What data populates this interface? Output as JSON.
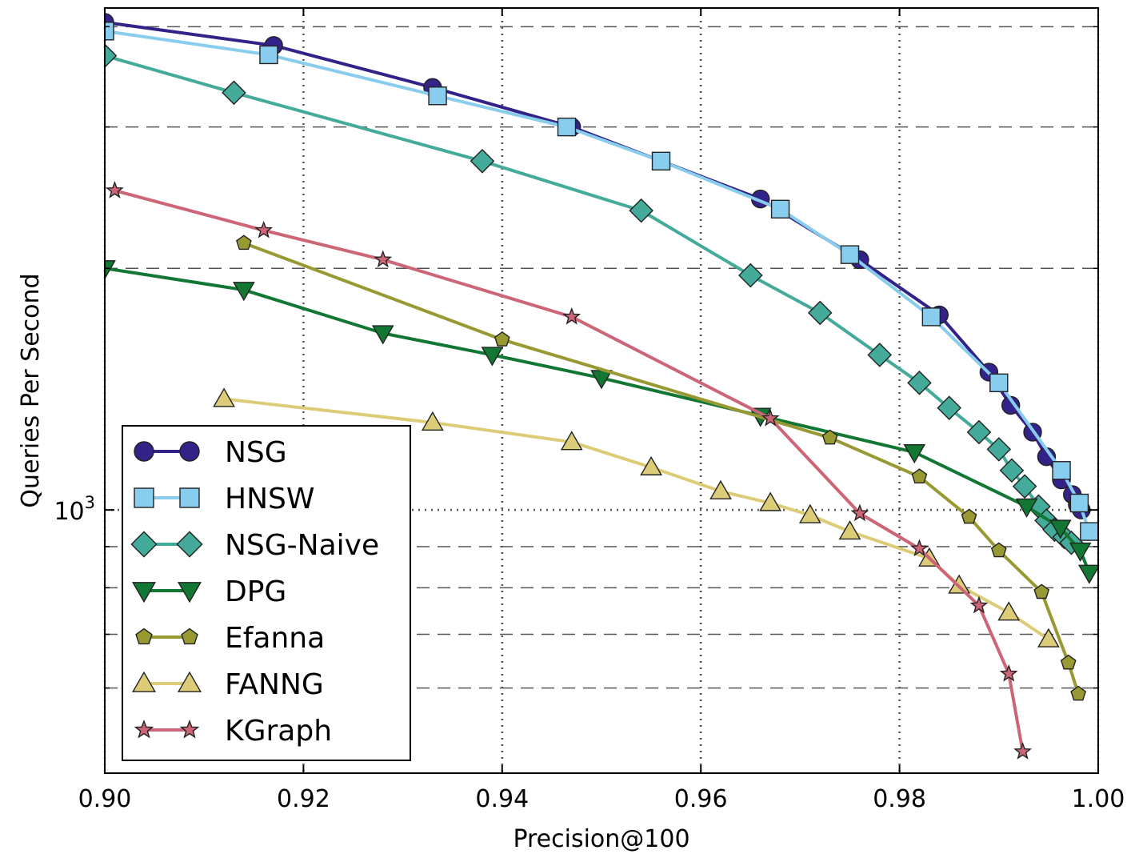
{
  "chart_data": {
    "type": "line",
    "xlabel": "Precision@100",
    "ylabel": "Queries Per Second",
    "xscale": "linear",
    "yscale": "log",
    "xlim": [
      0.9,
      1.0
    ],
    "ylim": [
      470,
      4220
    ],
    "x_ticks": [
      {
        "value": 0.9,
        "label": "0.90"
      },
      {
        "value": 0.92,
        "label": "0.92"
      },
      {
        "value": 0.94,
        "label": "0.94"
      },
      {
        "value": 0.96,
        "label": "0.96"
      },
      {
        "value": 0.98,
        "label": "0.98"
      },
      {
        "value": 1.0,
        "label": "1.00"
      }
    ],
    "y_major_tick": {
      "value": 1000,
      "base": "10",
      "exponent": "3"
    },
    "y_minor_ticks": [
      600,
      700,
      800,
      900,
      2000,
      3000,
      4000
    ],
    "grid": true,
    "legend_position": "lower-left",
    "series": [
      {
        "name": "NSG",
        "color": "#332288",
        "marker": "circle",
        "x": [
          0.9,
          0.917,
          0.933,
          0.947,
          0.966,
          0.976,
          0.984,
          0.989,
          0.9912,
          0.9934,
          0.9948,
          0.9963,
          0.9974,
          0.9979,
          0.9983
        ],
        "y": [
          4050,
          3790,
          3360,
          3000,
          2440,
          2050,
          1750,
          1485,
          1350,
          1250,
          1165,
          1090,
          1045,
          1015,
          1000
        ]
      },
      {
        "name": "HNSW",
        "color": "#88CCEE",
        "marker": "square",
        "x": [
          0.9,
          0.9165,
          0.9335,
          0.9465,
          0.956,
          0.968,
          0.975,
          0.9832,
          0.99,
          0.9963,
          0.9981,
          0.9991
        ],
        "y": [
          3950,
          3690,
          3280,
          3000,
          2720,
          2370,
          2080,
          1740,
          1440,
          1120,
          1020,
          940
        ]
      },
      {
        "name": "NSG-Naive",
        "color": "#44AA99",
        "marker": "diamond",
        "x": [
          0.9,
          0.913,
          0.938,
          0.954,
          0.965,
          0.972,
          0.978,
          0.982,
          0.985,
          0.988,
          0.99,
          0.9913,
          0.9926,
          0.994,
          0.9948,
          0.9956,
          0.9966,
          0.9973
        ],
        "y": [
          3680,
          3310,
          2720,
          2360,
          1960,
          1760,
          1560,
          1440,
          1340,
          1250,
          1190,
          1120,
          1070,
          1010,
          970,
          945,
          925,
          910
        ]
      },
      {
        "name": "DPG",
        "color": "#117733",
        "marker": "triangle-down",
        "x": [
          0.9,
          0.914,
          0.928,
          0.939,
          0.95,
          0.966,
          0.9815,
          0.9928,
          0.9962,
          0.9982,
          0.9991
        ],
        "y": [
          2000,
          1880,
          1660,
          1560,
          1460,
          1310,
          1180,
          1010,
          950,
          890,
          835
        ]
      },
      {
        "name": "Efanna",
        "color": "#999933",
        "marker": "pentagon",
        "x": [
          0.914,
          0.94,
          0.973,
          0.982,
          0.987,
          0.99,
          0.9943,
          0.997,
          0.998
        ],
        "y": [
          2150,
          1630,
          1230,
          1100,
          980,
          890,
          790,
          645,
          590
        ]
      },
      {
        "name": "FANNG",
        "color": "#DDCC77",
        "marker": "triangle-up",
        "x": [
          0.912,
          0.933,
          0.947,
          0.955,
          0.962,
          0.967,
          0.971,
          0.975,
          0.983,
          0.986,
          0.991,
          0.995
        ],
        "y": [
          1375,
          1285,
          1215,
          1130,
          1055,
          1020,
          985,
          940,
          870,
          805,
          745,
          690
        ]
      },
      {
        "name": "KGraph",
        "color": "#CC6677",
        "marker": "star",
        "x": [
          0.901,
          0.916,
          0.928,
          0.947,
          0.967,
          0.976,
          0.982,
          0.988,
          0.991,
          0.9924
        ],
        "y": [
          2500,
          2230,
          2050,
          1740,
          1300,
          990,
          895,
          760,
          625,
          500
        ]
      }
    ]
  }
}
